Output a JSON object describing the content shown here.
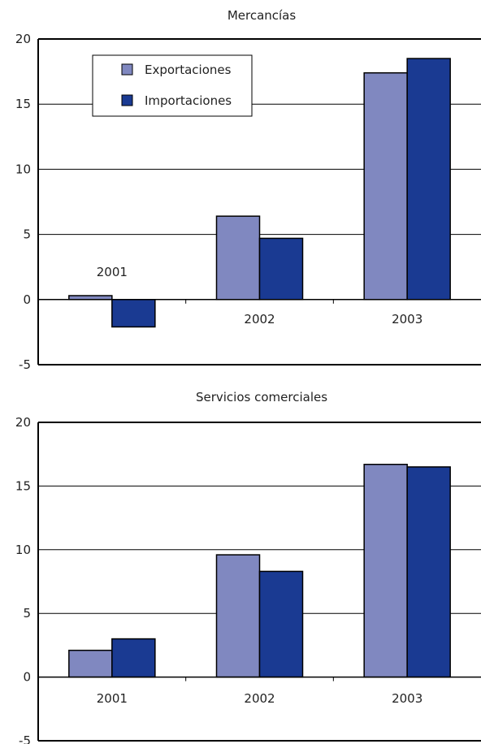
{
  "chart_data": [
    {
      "type": "bar",
      "title": "Mercancías",
      "categories": [
        "2001",
        "2002",
        "2003"
      ],
      "series": [
        {
          "name": "Exportaciones",
          "values": [
            0.3,
            6.4,
            17.4
          ]
        },
        {
          "name": "Importaciones",
          "values": [
            -2.1,
            4.7,
            18.5
          ]
        }
      ],
      "ylim": [
        -5,
        20
      ],
      "yticks": [
        -5,
        0,
        5,
        10,
        15,
        20
      ],
      "grid": true,
      "legend_position": "top-left"
    },
    {
      "type": "bar",
      "title": "Servicios comerciales",
      "categories": [
        "2001",
        "2002",
        "2003"
      ],
      "series": [
        {
          "name": "Exportaciones",
          "values": [
            2.1,
            9.6,
            16.7
          ]
        },
        {
          "name": "Importaciones",
          "values": [
            3.0,
            8.3,
            16.5
          ]
        }
      ],
      "ylim": [
        -5,
        20
      ],
      "yticks": [
        -5,
        0,
        5,
        10,
        15,
        20
      ],
      "grid": true
    }
  ],
  "colors": {
    "exportaciones": "#8088c0",
    "importaciones": "#1a3a92",
    "axis": "#000000",
    "grid": "#000000"
  }
}
